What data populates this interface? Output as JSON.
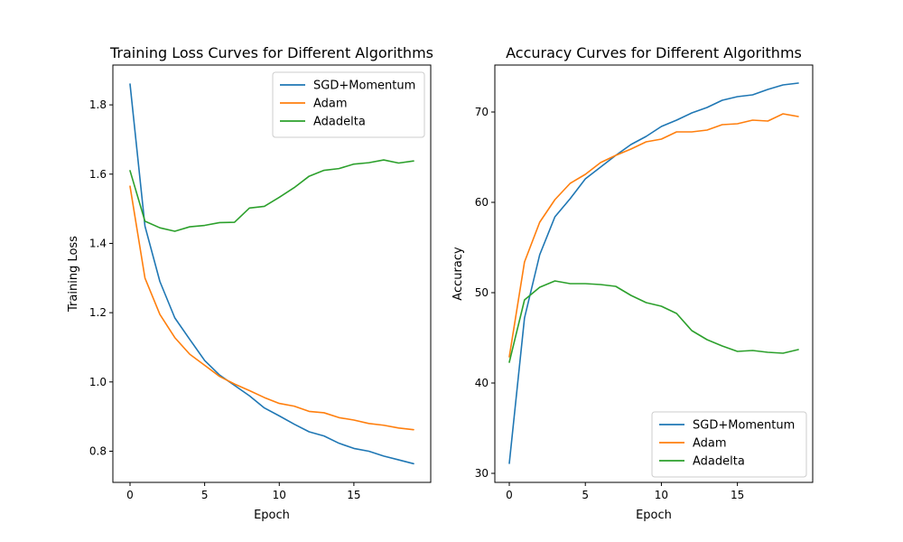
{
  "colors": {
    "series": [
      "#1f77b4",
      "#ff7f0e",
      "#2ca02c"
    ]
  },
  "chart_data": [
    {
      "type": "line",
      "title": "Training Loss Curves for Different Algorithms",
      "xlabel": "Epoch",
      "ylabel": "Training Loss",
      "x": [
        0,
        1,
        2,
        3,
        4,
        5,
        6,
        7,
        8,
        9,
        10,
        11,
        12,
        13,
        14,
        15,
        16,
        17,
        18,
        19
      ],
      "xlim": [
        -1.15,
        20.15
      ],
      "ylim": [
        0.71,
        1.915
      ],
      "xticks": [
        0,
        5,
        10,
        15
      ],
      "xtick_labels": [
        "0",
        "5",
        "10",
        "15"
      ],
      "yticks": [
        0.8,
        1.0,
        1.2,
        1.4,
        1.6,
        1.8
      ],
      "ytick_labels": [
        "0.8",
        "1.0",
        "1.2",
        "1.4",
        "1.6",
        "1.8"
      ],
      "grid": false,
      "legend": "top-right",
      "series": [
        {
          "name": "SGD+Momentum",
          "values": [
            1.86,
            1.45,
            1.29,
            1.185,
            1.123,
            1.062,
            1.02,
            0.99,
            0.96,
            0.925,
            0.902,
            0.878,
            0.856,
            0.844,
            0.823,
            0.808,
            0.8,
            0.786,
            0.775,
            0.764
          ]
        },
        {
          "name": "Adam",
          "values": [
            1.565,
            1.3,
            1.195,
            1.128,
            1.08,
            1.048,
            1.016,
            0.994,
            0.975,
            0.955,
            0.938,
            0.93,
            0.915,
            0.911,
            0.897,
            0.89,
            0.88,
            0.875,
            0.867,
            0.862
          ]
        },
        {
          "name": "Adadelta",
          "values": [
            1.61,
            1.464,
            1.445,
            1.435,
            1.448,
            1.452,
            1.46,
            1.461,
            1.502,
            1.507,
            1.533,
            1.561,
            1.594,
            1.611,
            1.616,
            1.629,
            1.633,
            1.641,
            1.632,
            1.638
          ]
        }
      ]
    },
    {
      "type": "line",
      "title": "Accuracy Curves for Different Algorithms",
      "xlabel": "Epoch",
      "ylabel": "Accuracy",
      "x": [
        0,
        1,
        2,
        3,
        4,
        5,
        6,
        7,
        8,
        9,
        10,
        11,
        12,
        13,
        14,
        15,
        16,
        17,
        18,
        19
      ],
      "xlim": [
        -0.95,
        19.95
      ],
      "ylim": [
        29.0,
        75.2
      ],
      "xticks": [
        0,
        5,
        10,
        15
      ],
      "xtick_labels": [
        "0",
        "5",
        "10",
        "15"
      ],
      "yticks": [
        30,
        40,
        50,
        60,
        70
      ],
      "ytick_labels": [
        "30",
        "40",
        "50",
        "60",
        "70"
      ],
      "grid": false,
      "legend": "bottom-right",
      "series": [
        {
          "name": "SGD+Momentum",
          "values": [
            31.1,
            47.2,
            54.2,
            58.4,
            60.4,
            62.6,
            63.9,
            65.2,
            66.4,
            67.3,
            68.4,
            69.1,
            69.9,
            70.5,
            71.3,
            71.7,
            71.9,
            72.5,
            73.0,
            73.2
          ]
        },
        {
          "name": "Adam",
          "values": [
            42.9,
            53.4,
            57.8,
            60.3,
            62.1,
            63.1,
            64.4,
            65.2,
            65.9,
            66.7,
            67.0,
            67.8,
            67.8,
            68.0,
            68.6,
            68.7,
            69.1,
            69.0,
            69.8,
            69.5
          ]
        },
        {
          "name": "Adadelta",
          "values": [
            42.3,
            49.2,
            50.6,
            51.3,
            51.0,
            51.0,
            50.9,
            50.7,
            49.7,
            48.9,
            48.5,
            47.7,
            45.8,
            44.8,
            44.1,
            43.5,
            43.6,
            43.4,
            43.3,
            43.7
          ]
        }
      ]
    }
  ]
}
